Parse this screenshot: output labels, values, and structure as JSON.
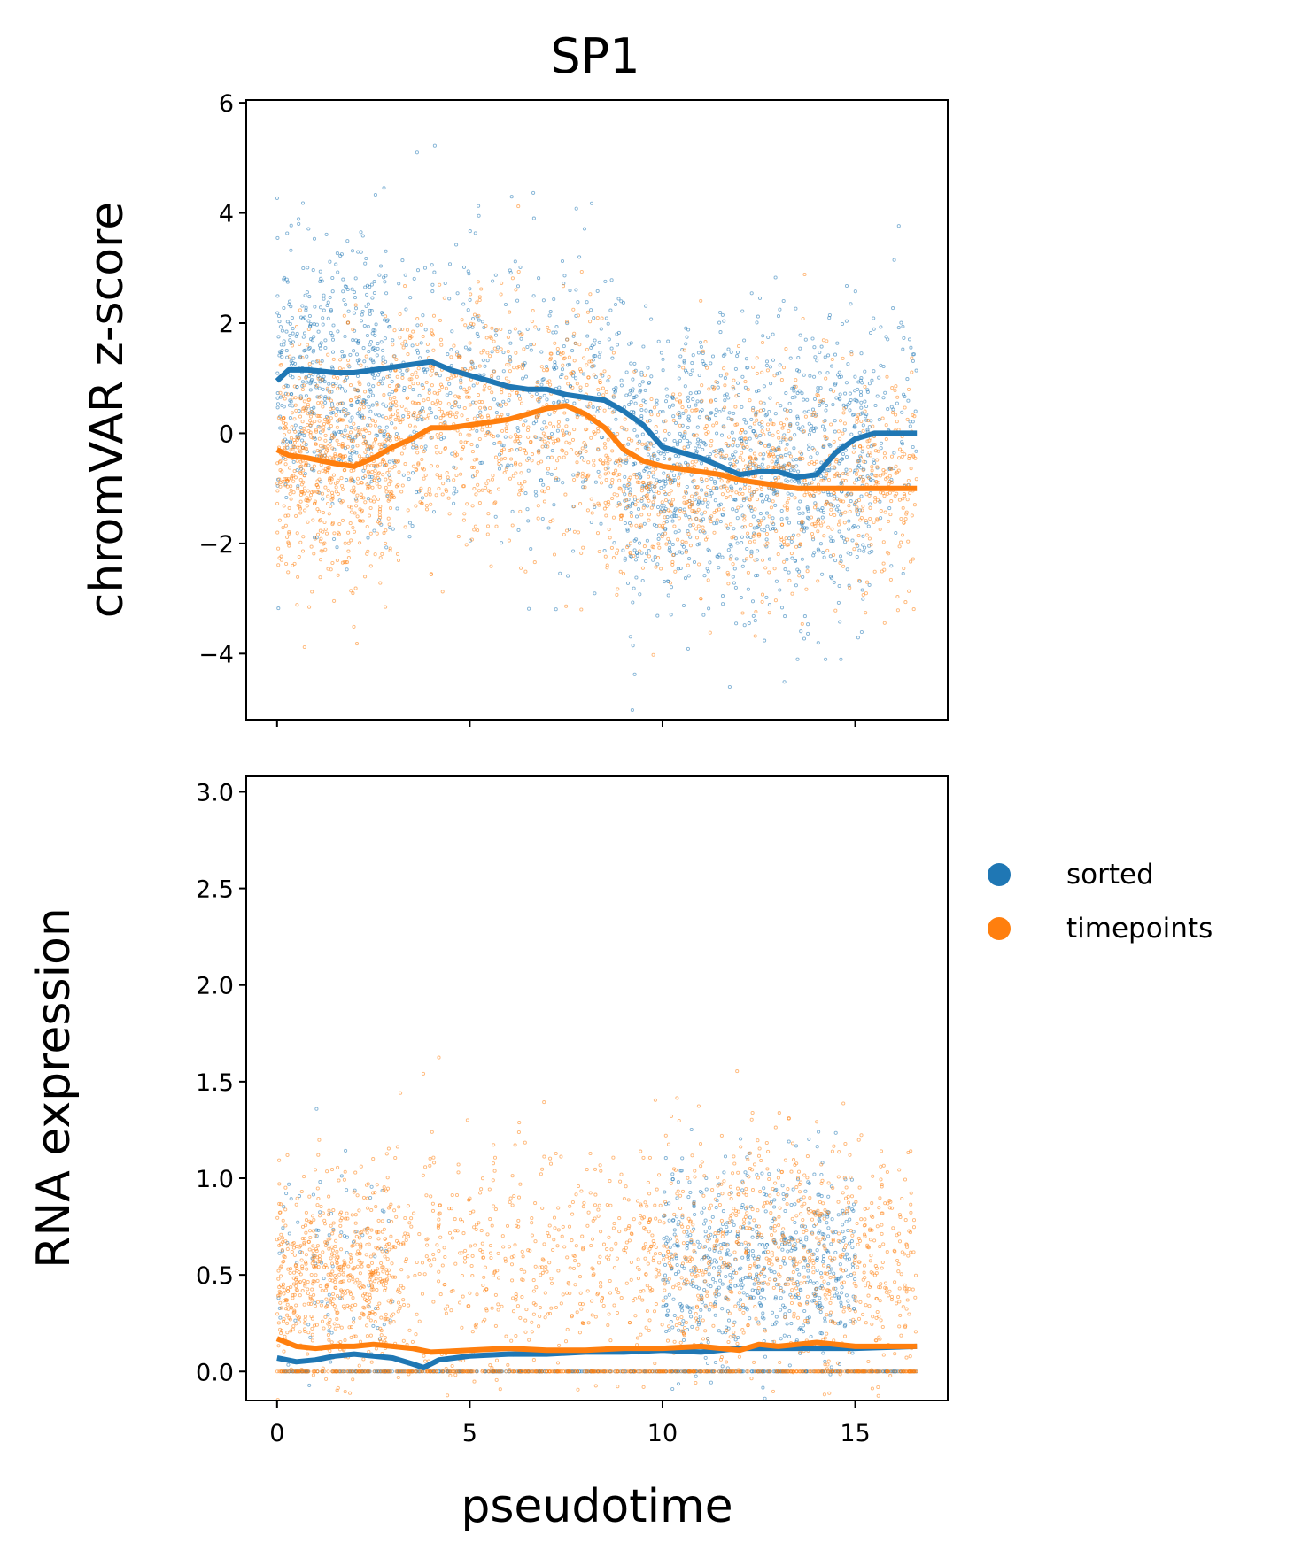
{
  "figure": {
    "title": "SP1",
    "xlabel": "pseudotime"
  },
  "legend": {
    "items": [
      {
        "label": "sorted",
        "color": "#1f77b4"
      },
      {
        "label": "timepoints",
        "color": "#ff7f0e"
      }
    ]
  },
  "chart_data": [
    {
      "type": "scatter",
      "panel": "top",
      "ylabel": "chromVAR z-score",
      "xlim": [
        -0.8,
        17.4
      ],
      "ylim": [
        -5.2,
        6.05
      ],
      "xticks": [
        0,
        5,
        10,
        15
      ],
      "xtick_labels_visible": false,
      "yticks": [
        -4,
        -2,
        0,
        2,
        4,
        6
      ],
      "ytick_labels": [
        "−4",
        "−2",
        "0",
        "2",
        "4",
        "6"
      ],
      "scatter_series": [
        {
          "name": "sorted",
          "color": "#1f77b4",
          "clusters": [
            {
              "x": [
                0,
                3
              ],
              "mean": 1.0,
              "sd": 1.2,
              "n": 520
            },
            {
              "x": [
                3,
                9
              ],
              "mean": 0.8,
              "sd": 1.4,
              "n": 420
            },
            {
              "x": [
                9,
                15.5
              ],
              "mean": -0.7,
              "sd": 1.3,
              "n": 1100
            },
            {
              "x": [
                15.5,
                16.6
              ],
              "mean": 0.0,
              "sd": 1.2,
              "n": 60
            }
          ]
        },
        {
          "name": "timepoints",
          "color": "#ff7f0e",
          "clusters": [
            {
              "x": [
                0,
                3
              ],
              "mean": -0.5,
              "sd": 1.0,
              "n": 650
            },
            {
              "x": [
                3,
                8.5
              ],
              "mean": 0.2,
              "sd": 1.1,
              "n": 700
            },
            {
              "x": [
                8.5,
                16.6
              ],
              "mean": -0.9,
              "sd": 1.0,
              "n": 900
            }
          ]
        }
      ],
      "trend_lines": [
        {
          "name": "sorted",
          "color": "#1f77b4",
          "x": [
            0,
            0.3,
            0.8,
            1.5,
            2.0,
            2.5,
            3.0,
            3.5,
            4.0,
            4.5,
            5.0,
            5.5,
            6.0,
            6.5,
            7.0,
            7.5,
            8.0,
            8.5,
            9.0,
            9.5,
            10.0,
            10.5,
            11.0,
            11.5,
            12.0,
            12.5,
            13.0,
            13.5,
            14.0,
            14.5,
            15.0,
            15.5,
            16.0,
            16.6
          ],
          "y": [
            0.95,
            1.15,
            1.15,
            1.1,
            1.1,
            1.15,
            1.2,
            1.25,
            1.3,
            1.15,
            1.05,
            0.95,
            0.85,
            0.8,
            0.8,
            0.7,
            0.65,
            0.6,
            0.4,
            0.15,
            -0.25,
            -0.35,
            -0.45,
            -0.6,
            -0.75,
            -0.7,
            -0.7,
            -0.8,
            -0.75,
            -0.35,
            -0.1,
            0.0,
            0.0,
            0.0
          ]
        },
        {
          "name": "timepoints",
          "color": "#ff7f0e",
          "x": [
            0,
            0.3,
            0.8,
            1.5,
            2.0,
            2.5,
            3.0,
            3.5,
            4.0,
            4.5,
            5.0,
            5.5,
            6.0,
            6.5,
            7.0,
            7.5,
            8.0,
            8.5,
            9.0,
            9.5,
            10.0,
            10.5,
            11.0,
            11.5,
            12.0,
            12.5,
            13.0,
            13.5,
            14.0,
            14.5,
            15.0,
            15.5,
            16.0,
            16.6
          ],
          "y": [
            -0.3,
            -0.4,
            -0.45,
            -0.55,
            -0.6,
            -0.45,
            -0.25,
            -0.1,
            0.1,
            0.1,
            0.15,
            0.2,
            0.25,
            0.35,
            0.45,
            0.5,
            0.35,
            0.1,
            -0.3,
            -0.5,
            -0.6,
            -0.65,
            -0.7,
            -0.75,
            -0.85,
            -0.9,
            -0.95,
            -1.0,
            -1.0,
            -1.0,
            -1.0,
            -1.0,
            -1.0,
            -1.0
          ]
        }
      ]
    },
    {
      "type": "scatter",
      "panel": "bottom",
      "ylabel": "RNA expression",
      "xlabel": "pseudotime",
      "xlim": [
        -0.8,
        17.4
      ],
      "ylim": [
        -0.15,
        3.08
      ],
      "xticks": [
        0,
        5,
        10,
        15
      ],
      "xtick_labels": [
        "0",
        "5",
        "10",
        "15"
      ],
      "yticks": [
        0.0,
        0.5,
        1.0,
        1.5,
        2.0,
        2.5,
        3.0
      ],
      "ytick_labels": [
        "0.0",
        "0.5",
        "1.0",
        "1.5",
        "2.0",
        "2.5",
        "3.0"
      ],
      "scatter_series": [
        {
          "name": "sorted",
          "color": "#1f77b4",
          "clusters": [
            {
              "x": [
                0,
                3
              ],
              "mean": 0.6,
              "sd": 0.3,
              "n": 80
            },
            {
              "x": [
                10,
                15
              ],
              "mean": 0.55,
              "sd": 0.25,
              "n": 650
            },
            {
              "x": [
                0,
                16.6
              ],
              "mean": 0.0,
              "sd": 0.0,
              "n": 400
            }
          ]
        },
        {
          "name": "timepoints",
          "color": "#ff7f0e",
          "clusters": [
            {
              "x": [
                0,
                3
              ],
              "mean": 0.5,
              "sd": 0.25,
              "n": 600
            },
            {
              "x": [
                3,
                9.5
              ],
              "mean": 0.55,
              "sd": 0.3,
              "n": 500
            },
            {
              "x": [
                9.5,
                16.6
              ],
              "mean": 0.6,
              "sd": 0.3,
              "n": 800
            },
            {
              "x": [
                0,
                16.6
              ],
              "mean": 0.0,
              "sd": 0.0,
              "n": 500
            }
          ]
        }
      ],
      "trend_lines": [
        {
          "name": "sorted",
          "color": "#1f77b4",
          "x": [
            0,
            0.5,
            1.0,
            1.5,
            2.0,
            2.5,
            3.0,
            3.5,
            3.8,
            4.2,
            5.0,
            6.0,
            7.0,
            8.0,
            9.0,
            10.0,
            11.0,
            12.0,
            13.0,
            14.0,
            15.0,
            16.6
          ],
          "y": [
            0.07,
            0.05,
            0.06,
            0.08,
            0.09,
            0.08,
            0.07,
            0.04,
            0.02,
            0.06,
            0.08,
            0.09,
            0.09,
            0.1,
            0.1,
            0.11,
            0.1,
            0.12,
            0.12,
            0.12,
            0.12,
            0.13
          ]
        },
        {
          "name": "timepoints",
          "color": "#ff7f0e",
          "x": [
            0,
            0.5,
            1.0,
            1.5,
            2.0,
            2.5,
            3.0,
            3.5,
            4.0,
            5.0,
            6.0,
            7.0,
            8.0,
            9.0,
            10.0,
            11.0,
            12.0,
            12.5,
            13.0,
            13.5,
            14.0,
            15.0,
            16.6
          ],
          "y": [
            0.17,
            0.13,
            0.12,
            0.13,
            0.13,
            0.14,
            0.13,
            0.12,
            0.1,
            0.11,
            0.12,
            0.11,
            0.11,
            0.12,
            0.12,
            0.13,
            0.11,
            0.14,
            0.13,
            0.14,
            0.15,
            0.13,
            0.13
          ]
        }
      ]
    }
  ]
}
